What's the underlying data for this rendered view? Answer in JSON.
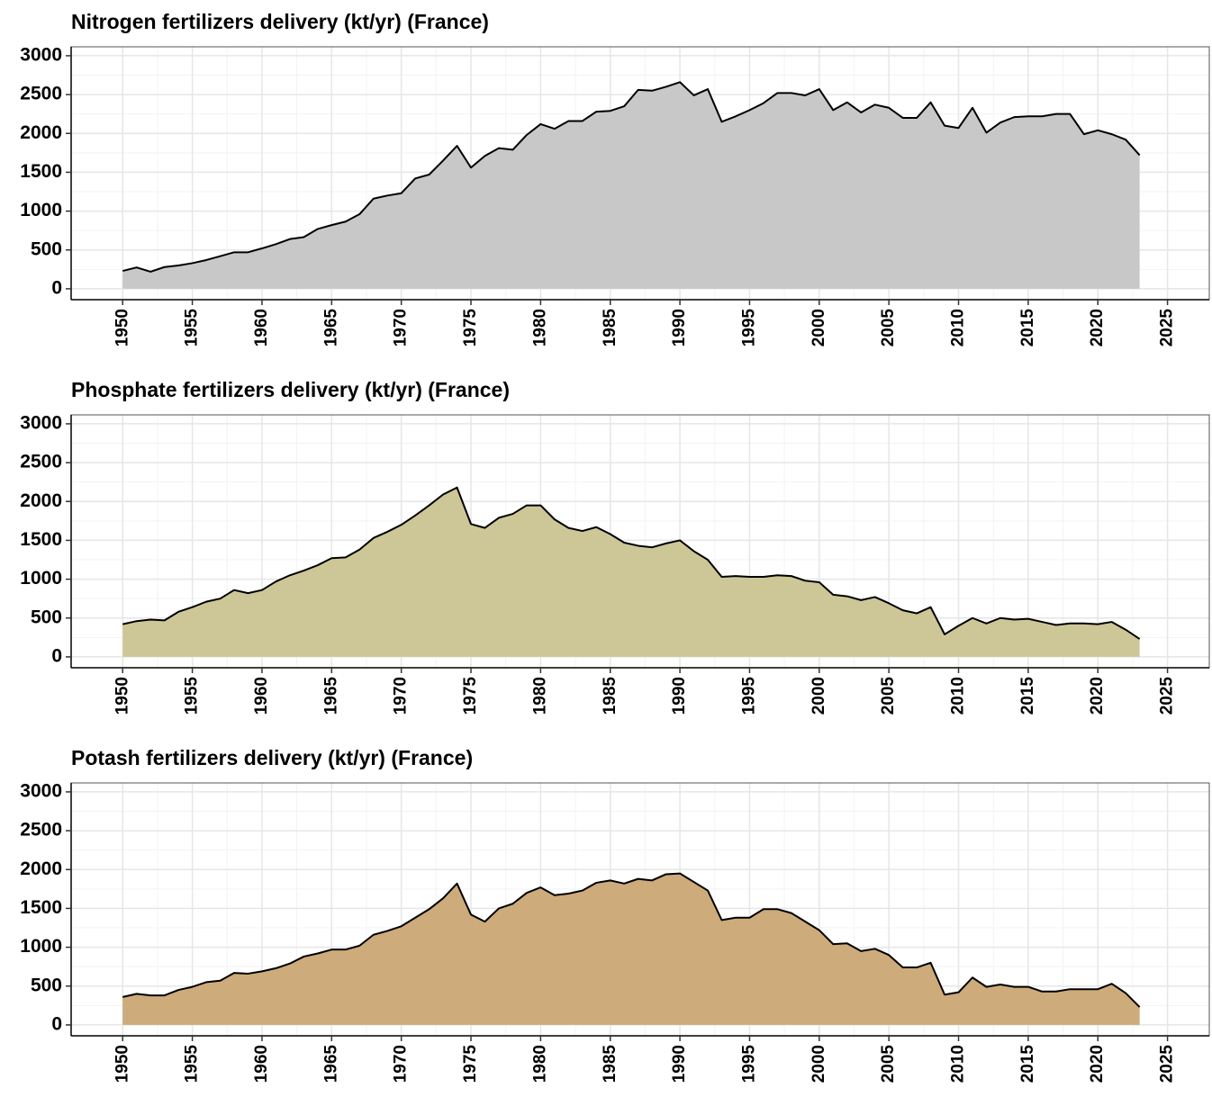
{
  "chart_data": [
    {
      "type": "area",
      "title": "Nitrogen fertilizers delivery (kt/yr) (France)",
      "color": "#c8c8c8",
      "line_color": "#000000",
      "x": [
        1950,
        1951,
        1952,
        1953,
        1954,
        1955,
        1956,
        1957,
        1958,
        1959,
        1960,
        1961,
        1962,
        1963,
        1964,
        1965,
        1966,
        1967,
        1968,
        1969,
        1970,
        1971,
        1972,
        1973,
        1974,
        1975,
        1976,
        1977,
        1978,
        1979,
        1980,
        1981,
        1982,
        1983,
        1984,
        1985,
        1986,
        1987,
        1988,
        1989,
        1990,
        1991,
        1992,
        1993,
        1994,
        1995,
        1996,
        1997,
        1998,
        1999,
        2000,
        2001,
        2002,
        2003,
        2004,
        2005,
        2006,
        2007,
        2008,
        2009,
        2010,
        2011,
        2012,
        2013,
        2014,
        2015,
        2016,
        2017,
        2018,
        2019,
        2020,
        2021,
        2022,
        2023
      ],
      "values": [
        230,
        275,
        220,
        280,
        300,
        330,
        370,
        420,
        470,
        470,
        520,
        575,
        640,
        665,
        770,
        820,
        865,
        960,
        1160,
        1200,
        1230,
        1420,
        1470,
        1650,
        1840,
        1560,
        1710,
        1810,
        1790,
        1980,
        2120,
        2060,
        2160,
        2160,
        2280,
        2290,
        2350,
        2560,
        2550,
        2600,
        2660,
        2490,
        2570,
        2150,
        2220,
        2300,
        2390,
        2520,
        2520,
        2490,
        2570,
        2300,
        2400,
        2270,
        2370,
        2330,
        2200,
        2200,
        2400,
        2100,
        2070,
        2330,
        2010,
        2140,
        2210,
        2220,
        2220,
        2250,
        2250,
        1990,
        2040,
        1990,
        1920,
        1720
      ],
      "xlim": [
        1946.3,
        2028
      ],
      "ylim": [
        -140,
        3115
      ],
      "xticks": [
        1950,
        1955,
        1960,
        1965,
        1970,
        1975,
        1980,
        1985,
        1990,
        1995,
        2000,
        2005,
        2010,
        2015,
        2020,
        2025
      ],
      "yticks": [
        0,
        500,
        1000,
        1500,
        2000,
        2500,
        3000
      ],
      "grid": true
    },
    {
      "type": "area",
      "title": "Phosphate fertilizers delivery (kt/yr) (France)",
      "color": "#cdc797",
      "line_color": "#000000",
      "x": [
        1950,
        1951,
        1952,
        1953,
        1954,
        1955,
        1956,
        1957,
        1958,
        1959,
        1960,
        1961,
        1962,
        1963,
        1964,
        1965,
        1966,
        1967,
        1968,
        1969,
        1970,
        1971,
        1972,
        1973,
        1974,
        1975,
        1976,
        1977,
        1978,
        1979,
        1980,
        1981,
        1982,
        1983,
        1984,
        1985,
        1986,
        1987,
        1988,
        1989,
        1990,
        1991,
        1992,
        1993,
        1994,
        1995,
        1996,
        1997,
        1998,
        1999,
        2000,
        2001,
        2002,
        2003,
        2004,
        2005,
        2006,
        2007,
        2008,
        2009,
        2010,
        2011,
        2012,
        2013,
        2014,
        2015,
        2016,
        2017,
        2018,
        2019,
        2020,
        2021,
        2022,
        2023
      ],
      "values": [
        420,
        460,
        480,
        470,
        580,
        640,
        710,
        750,
        860,
        820,
        860,
        970,
        1050,
        1110,
        1180,
        1270,
        1280,
        1380,
        1530,
        1610,
        1700,
        1820,
        1950,
        2090,
        2180,
        1710,
        1660,
        1790,
        1840,
        1950,
        1950,
        1770,
        1660,
        1620,
        1670,
        1580,
        1470,
        1430,
        1410,
        1460,
        1500,
        1360,
        1250,
        1030,
        1040,
        1030,
        1030,
        1050,
        1040,
        980,
        960,
        800,
        780,
        730,
        770,
        690,
        600,
        560,
        640,
        290,
        400,
        500,
        430,
        500,
        480,
        490,
        450,
        410,
        430,
        430,
        420,
        450,
        350,
        230
      ],
      "xlim": [
        1946.3,
        2028
      ],
      "ylim": [
        -140,
        3115
      ],
      "xticks": [
        1950,
        1955,
        1960,
        1965,
        1970,
        1975,
        1980,
        1985,
        1990,
        1995,
        2000,
        2005,
        2010,
        2015,
        2020,
        2025
      ],
      "yticks": [
        0,
        500,
        1000,
        1500,
        2000,
        2500,
        3000
      ],
      "grid": true
    },
    {
      "type": "area",
      "title": "Potash fertilizers delivery (kt/yr) (France)",
      "color": "#cdab7a",
      "line_color": "#000000",
      "x": [
        1950,
        1951,
        1952,
        1953,
        1954,
        1955,
        1956,
        1957,
        1958,
        1959,
        1960,
        1961,
        1962,
        1963,
        1964,
        1965,
        1966,
        1967,
        1968,
        1969,
        1970,
        1971,
        1972,
        1973,
        1974,
        1975,
        1976,
        1977,
        1978,
        1979,
        1980,
        1981,
        1982,
        1983,
        1984,
        1985,
        1986,
        1987,
        1988,
        1989,
        1990,
        1991,
        1992,
        1993,
        1994,
        1995,
        1996,
        1997,
        1998,
        1999,
        2000,
        2001,
        2002,
        2003,
        2004,
        2005,
        2006,
        2007,
        2008,
        2009,
        2010,
        2011,
        2012,
        2013,
        2014,
        2015,
        2016,
        2017,
        2018,
        2019,
        2020,
        2021,
        2022,
        2023
      ],
      "values": [
        360,
        400,
        380,
        380,
        450,
        490,
        550,
        570,
        670,
        660,
        690,
        730,
        790,
        880,
        920,
        970,
        970,
        1020,
        1160,
        1210,
        1270,
        1380,
        1490,
        1630,
        1820,
        1420,
        1330,
        1500,
        1560,
        1700,
        1770,
        1670,
        1690,
        1730,
        1830,
        1860,
        1820,
        1880,
        1860,
        1940,
        1950,
        1840,
        1730,
        1350,
        1380,
        1380,
        1490,
        1490,
        1440,
        1330,
        1220,
        1040,
        1050,
        950,
        980,
        900,
        740,
        740,
        800,
        390,
        420,
        610,
        490,
        520,
        490,
        490,
        430,
        430,
        460,
        460,
        460,
        530,
        410,
        230
      ],
      "xlim": [
        1946.3,
        2028
      ],
      "ylim": [
        -140,
        3115
      ],
      "xticks": [
        1950,
        1955,
        1960,
        1965,
        1970,
        1975,
        1980,
        1985,
        1990,
        1995,
        2000,
        2005,
        2010,
        2015,
        2020,
        2025
      ],
      "yticks": [
        0,
        500,
        1000,
        1500,
        2000,
        2500,
        3000
      ],
      "grid": true
    }
  ]
}
